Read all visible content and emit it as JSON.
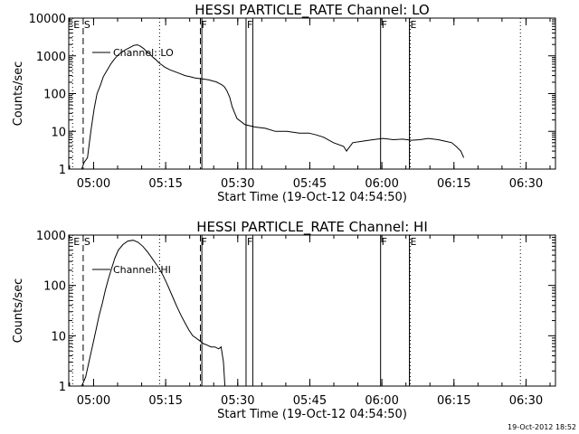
{
  "stamp": "19-Oct-2012 18:52",
  "chart_data": [
    {
      "type": "line",
      "title": "HESSI PARTICLE_RATE Channel: LO",
      "xlabel": "Start Time (19-Oct-12 04:54:50)",
      "ylabel": "Counts/sec",
      "yscale": "log",
      "ylim": [
        1,
        10000
      ],
      "y_ticks": [
        "1",
        "10",
        "100",
        "1000",
        "10000"
      ],
      "x_ticks": [
        "05:00",
        "05:15",
        "05:30",
        "05:45",
        "06:00",
        "06:15",
        "06:30"
      ],
      "x_tick_minutes": [
        5.17,
        20.17,
        35.17,
        50.17,
        65.17,
        80.17,
        95.17
      ],
      "xlim_minutes": [
        0,
        101.3
      ],
      "legend": "Channel: LO",
      "series": [
        {
          "name": "Channel: LO",
          "x_minutes": [
            0.0,
            1.7,
            2.7,
            3.2,
            3.9,
            4.6,
            5.3,
            5.9,
            6.6,
            7.2,
            8.0,
            8.8,
            9.6,
            10.6,
            11.8,
            12.9,
            13.6,
            14.3,
            14.9,
            15.6,
            16.2,
            16.9,
            17.6,
            18.2,
            18.8,
            19.4,
            20.0,
            21.0,
            22.1,
            23.1,
            24.2,
            25.2,
            26.3,
            27.2,
            28.3,
            29.2,
            30.0,
            30.7,
            31.2,
            31.9,
            32.4,
            32.9,
            33.5,
            34.0,
            35.0,
            36.7,
            38.8,
            40.9,
            43.0,
            45.4,
            48.0,
            50.0,
            51.6,
            53.0,
            55.1,
            57.2,
            57.8,
            59.1,
            61.2,
            63.3,
            65.4,
            67.6,
            69.5,
            71.3,
            73.1,
            74.8,
            76.9,
            78.3,
            79.7,
            80.6,
            81.6,
            82.2
          ],
          "y": [
            1,
            1,
            1,
            1.5,
            2,
            10,
            40,
            100,
            170,
            280,
            420,
            620,
            850,
            1150,
            1450,
            1700,
            1900,
            1950,
            1800,
            1550,
            1300,
            1100,
            900,
            780,
            650,
            570,
            500,
            430,
            380,
            340,
            300,
            280,
            260,
            250,
            240,
            230,
            215,
            205,
            190,
            170,
            150,
            120,
            80,
            45,
            22,
            15,
            13,
            12,
            10,
            10,
            9,
            9,
            8,
            7,
            5,
            4,
            3,
            5,
            5.5,
            6,
            6.5,
            6,
            6.2,
            5.8,
            6,
            6.5,
            6,
            5.5,
            5,
            4,
            3,
            2
          ]
        }
      ],
      "markers": [
        {
          "label": "E",
          "minute": 0.8,
          "style": "dotted"
        },
        {
          "label": "S",
          "minute": 3.0,
          "style": "dashed"
        },
        {
          "label": "F",
          "minute": 27.4,
          "style": "dashed"
        },
        {
          "label": "",
          "minute": 27.7,
          "style": "solid"
        },
        {
          "label": "F",
          "minute": 36.9,
          "style": "solid"
        },
        {
          "label": "",
          "minute": 38.3,
          "style": "solid"
        },
        {
          "label": "F",
          "minute": 64.9,
          "style": "solid"
        },
        {
          "label": "E",
          "minute": 70.9,
          "style": "solid"
        },
        {
          "label": "",
          "minute": 18.9,
          "style": "dotted"
        },
        {
          "label": "",
          "minute": 71.1,
          "style": "dotted"
        },
        {
          "label": "",
          "minute": 94.0,
          "style": "dotted"
        }
      ]
    },
    {
      "type": "line",
      "title": "HESSI PARTICLE_RATE Channel: HI",
      "xlabel": "Start Time (19-Oct-12 04:54:50)",
      "ylabel": "Counts/sec",
      "yscale": "log",
      "ylim": [
        1,
        1000
      ],
      "y_ticks": [
        "1",
        "10",
        "100",
        "1000"
      ],
      "x_ticks": [
        "05:00",
        "05:15",
        "05:30",
        "05:45",
        "06:00",
        "06:15",
        "06:30"
      ],
      "x_tick_minutes": [
        5.17,
        20.17,
        35.17,
        50.17,
        65.17,
        80.17,
        95.17
      ],
      "xlim_minutes": [
        0,
        101.3
      ],
      "legend": "Channel: HI",
      "series": [
        {
          "name": "Channel: HI",
          "x_minutes": [
            2.7,
            3.5,
            4.2,
            4.9,
            5.6,
            6.3,
            7.0,
            7.6,
            8.3,
            9.0,
            9.6,
            10.3,
            11.3,
            12.3,
            13.4,
            14.4,
            15.4,
            16.5,
            17.5,
            18.5,
            19.6,
            20.6,
            21.6,
            22.5,
            23.4,
            24.2,
            25.0,
            25.8,
            26.5,
            27.2,
            28.0,
            28.8,
            29.6,
            30.4,
            31.2,
            31.7,
            32.2,
            32.5
          ],
          "y": [
            1,
            1.5,
            3,
            6,
            12,
            25,
            45,
            80,
            140,
            230,
            350,
            500,
            650,
            760,
            790,
            720,
            600,
            450,
            330,
            240,
            160,
            100,
            60,
            38,
            25,
            18,
            13,
            10,
            9,
            8,
            7,
            6.5,
            6,
            6,
            5.5,
            6,
            3,
            1
          ]
        }
      ],
      "markers": [
        {
          "label": "E",
          "minute": 0.8,
          "style": "dotted"
        },
        {
          "label": "S",
          "minute": 3.0,
          "style": "dashed"
        },
        {
          "label": "F",
          "minute": 27.4,
          "style": "dashed"
        },
        {
          "label": "",
          "minute": 27.7,
          "style": "solid"
        },
        {
          "label": "F",
          "minute": 36.9,
          "style": "solid"
        },
        {
          "label": "",
          "minute": 38.3,
          "style": "solid"
        },
        {
          "label": "F",
          "minute": 64.9,
          "style": "solid"
        },
        {
          "label": "E",
          "minute": 70.9,
          "style": "solid"
        },
        {
          "label": "",
          "minute": 18.9,
          "style": "dotted"
        },
        {
          "label": "",
          "minute": 71.1,
          "style": "dotted"
        },
        {
          "label": "",
          "minute": 94.0,
          "style": "dotted"
        }
      ]
    }
  ]
}
